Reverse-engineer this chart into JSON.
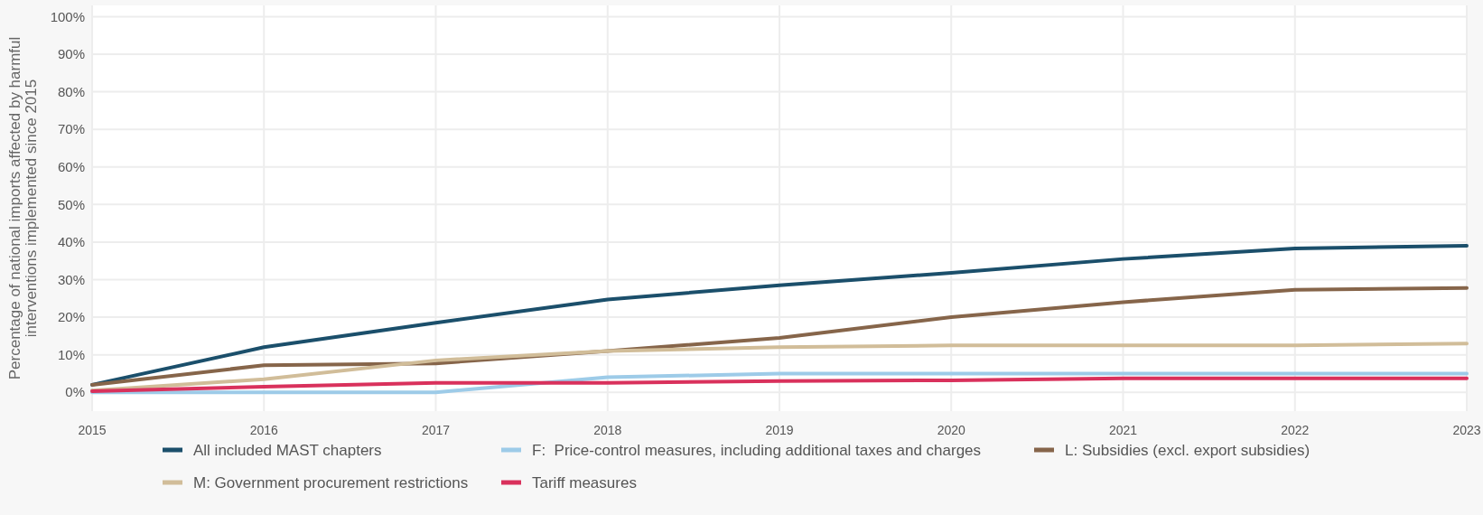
{
  "chart_data": {
    "type": "line",
    "ylabel": "Percentage of national imports affected by harmful interventions implemented since 2015",
    "x": [
      2015,
      2016,
      2017,
      2018,
      2019,
      2020,
      2021,
      2022,
      2023
    ],
    "xlim": [
      2015,
      2023
    ],
    "xticks": [
      2015,
      2016,
      2017,
      2018,
      2019,
      2020,
      2021,
      2022,
      2023
    ],
    "ylim": [
      -5,
      103
    ],
    "yticks": [
      {
        "value": 0,
        "label": "0%"
      },
      {
        "value": 10,
        "label": "10%"
      },
      {
        "value": 20,
        "label": "20%"
      },
      {
        "value": 30,
        "label": "30%"
      },
      {
        "value": 40,
        "label": "40%"
      },
      {
        "value": 50,
        "label": "50%"
      },
      {
        "value": 60,
        "label": "60%"
      },
      {
        "value": 70,
        "label": "70%"
      },
      {
        "value": 80,
        "label": "80%"
      },
      {
        "value": 90,
        "label": "90%"
      },
      {
        "value": 100,
        "label": "100%"
      }
    ],
    "grid": true,
    "legend": "bottom",
    "marker": "none",
    "line_style": "solid",
    "series": [
      {
        "name": "All included MAST chapters",
        "color": "#1b4f6b",
        "values": [
          2,
          12,
          18.5,
          24.7,
          28.5,
          31.8,
          35.5,
          38.3,
          39
        ]
      },
      {
        "name": "F:  Price-control measures, including additional taxes and charges",
        "color": "#9dcbe8",
        "values": [
          0,
          0,
          0,
          4,
          5,
          5,
          5,
          5,
          5
        ]
      },
      {
        "name": "L: Subsidies (excl. export subsidies)",
        "color": "#86654a",
        "values": [
          2,
          7.2,
          7.7,
          11,
          14.5,
          20,
          24,
          27.3,
          27.8
        ]
      },
      {
        "name": "M: Government procurement restrictions",
        "color": "#d1bd99",
        "values": [
          0.5,
          3.5,
          8.5,
          11,
          12,
          12.5,
          12.5,
          12.5,
          13
        ]
      },
      {
        "name": "Tariff measures",
        "color": "#d9315c",
        "values": [
          0.3,
          1.5,
          2.5,
          2.5,
          3,
          3.2,
          3.7,
          3.7,
          3.7
        ]
      }
    ]
  }
}
